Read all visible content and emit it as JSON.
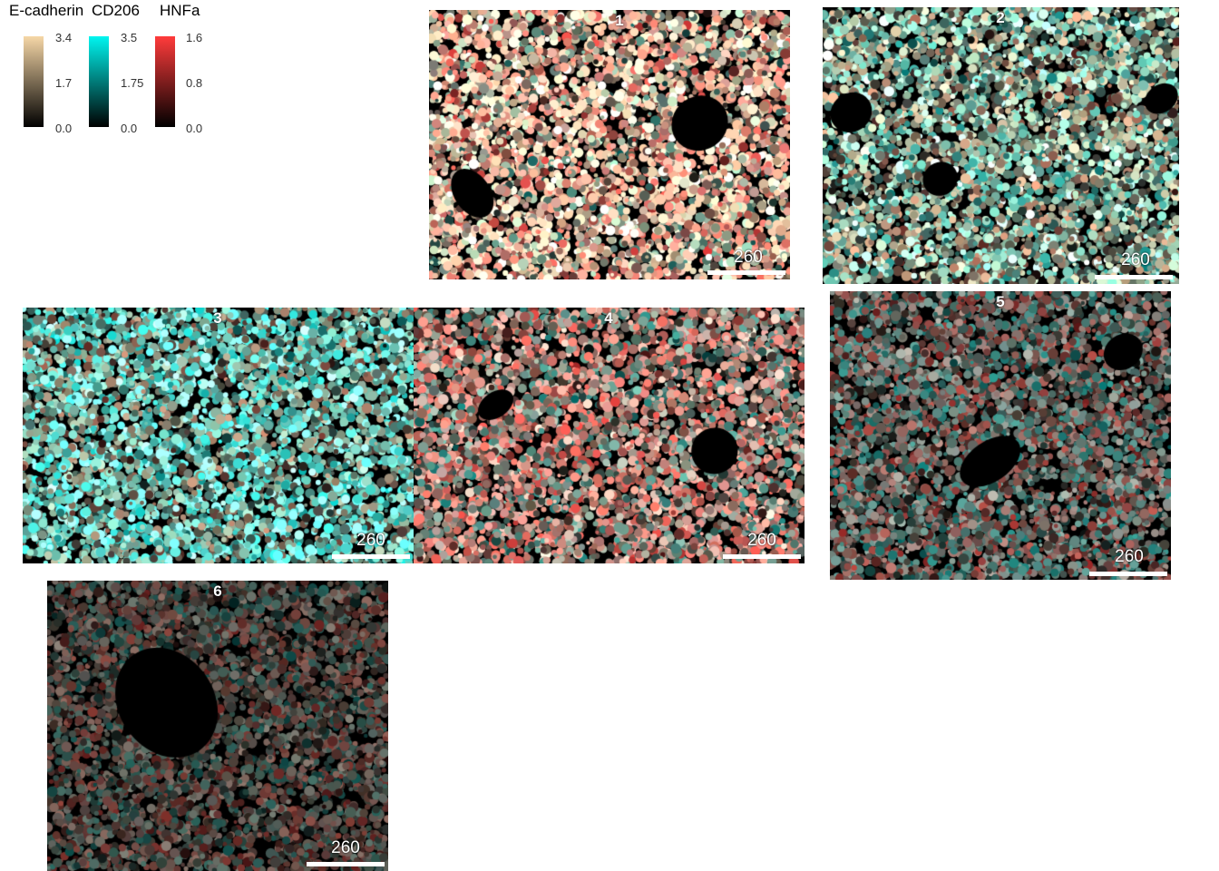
{
  "legend": [
    {
      "title": "E-cadherin",
      "max": "3.4",
      "mid": "1.7",
      "min": "0.0",
      "color_top": "#f6d7a7",
      "color_bottom": "#000000"
    },
    {
      "title": "CD206",
      "max": "3.5",
      "mid": "1.75",
      "min": "0.0",
      "color_top": "#00f5f0",
      "color_bottom": "#000000"
    },
    {
      "title": "HNFa",
      "max": "1.6",
      "mid": "0.8",
      "min": "0.0",
      "color_top": "#ff3b3b",
      "color_bottom": "#000000"
    }
  ],
  "panels": [
    {
      "label": "1",
      "scale": "260",
      "icon": "cell-expression-map"
    },
    {
      "label": "2",
      "scale": "260",
      "icon": "cell-expression-map"
    },
    {
      "label": "3",
      "scale": "260",
      "icon": "cell-expression-map"
    },
    {
      "label": "4",
      "scale": "260",
      "icon": "cell-expression-map"
    },
    {
      "label": "5",
      "scale": "260",
      "icon": "cell-expression-map"
    },
    {
      "label": "6",
      "scale": "260",
      "icon": "cell-expression-map"
    }
  ]
}
